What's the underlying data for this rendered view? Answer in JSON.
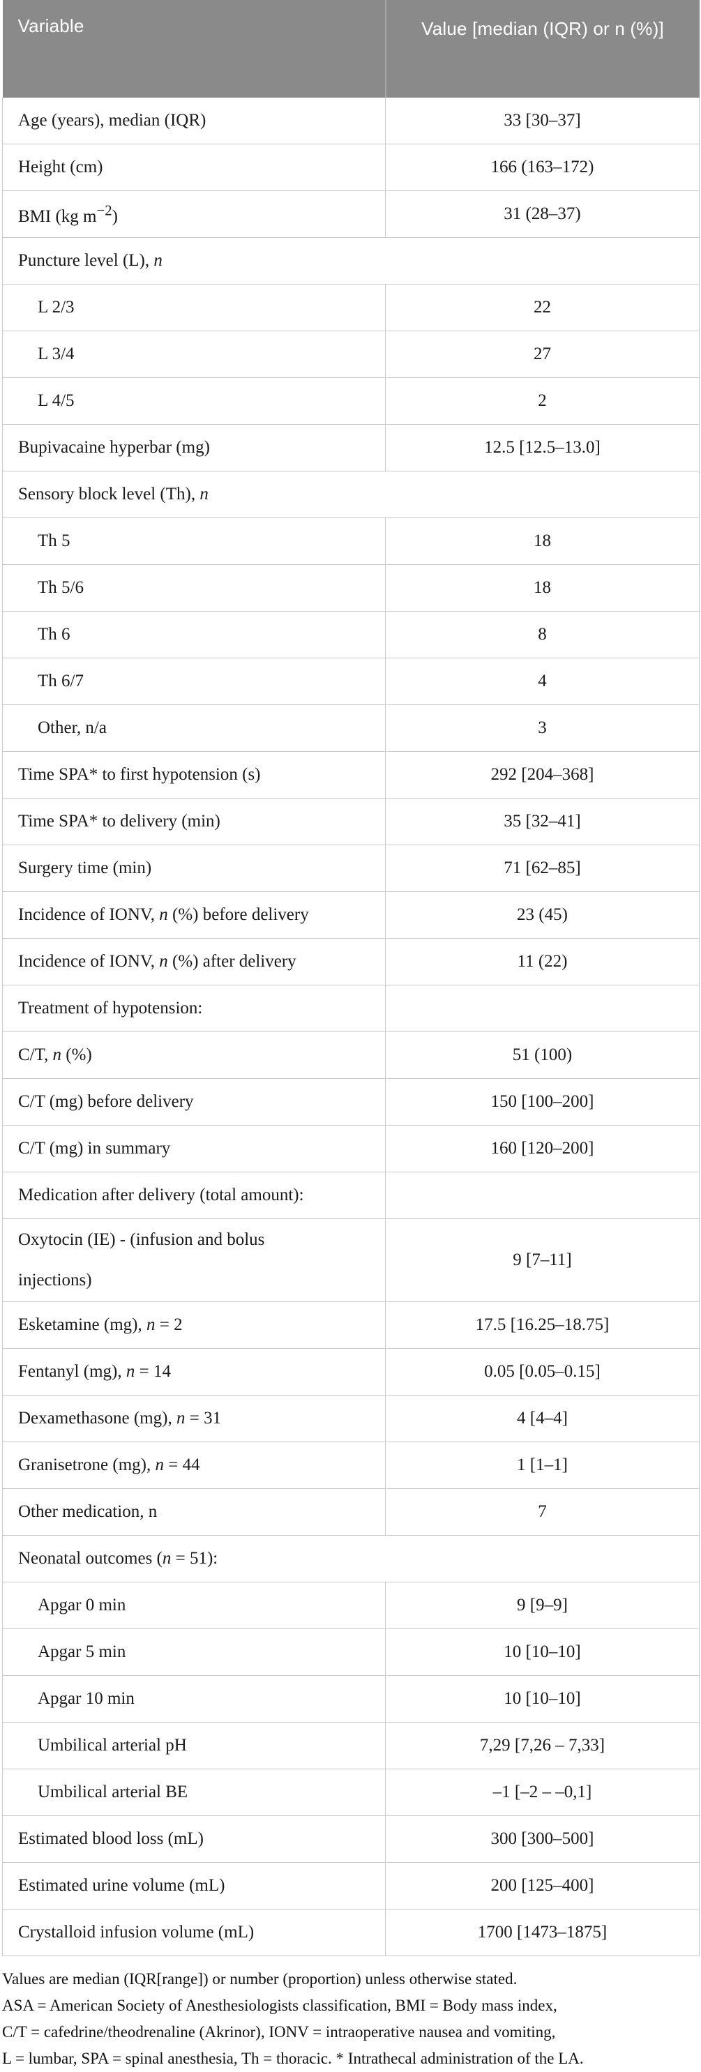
{
  "table": {
    "columns": {
      "variable": "Variable",
      "value": "Value [median (IQR) or n (%)]"
    },
    "header_bg_color": "#8a8a8a",
    "header_text_color": "#ffffff",
    "rows": [
      {
        "label": "Age (years), median (IQR)",
        "value": "33 [30–37]"
      },
      {
        "label": "Height (cm)",
        "value": "166 (163–172)"
      },
      {
        "label": "BMI (kg m<sup>−2</sup>)",
        "value": "31 (28–37)"
      },
      {
        "label": "Puncture level (L), <i>n</i>",
        "section": true
      },
      {
        "label": "L 2/3",
        "value": "22",
        "indent": true
      },
      {
        "label": "L 3/4",
        "value": "27",
        "indent": true
      },
      {
        "label": "L 4/5",
        "value": "2",
        "indent": true
      },
      {
        "label": "Bupivacaine hyperbar (mg)",
        "value": "12.5 [12.5–13.0]"
      },
      {
        "label": "Sensory block level (Th), <i>n</i>",
        "section": true
      },
      {
        "label": "Th 5",
        "value": "18",
        "indent": true
      },
      {
        "label": "Th 5/6",
        "value": "18",
        "indent": true
      },
      {
        "label": "Th 6",
        "value": "8",
        "indent": true
      },
      {
        "label": "Th 6/7",
        "value": "4",
        "indent": true
      },
      {
        "label": "Other, n/a",
        "value": "3",
        "indent": true
      },
      {
        "label": "Time SPA* to first hypotension (s)",
        "value": "292 [204–368]"
      },
      {
        "label": "Time SPA* to delivery (min)",
        "value": "35 [32–41]"
      },
      {
        "label": "Surgery time (min)",
        "value": "71 [62–85]"
      },
      {
        "label": "Incidence of IONV, <i>n</i> (%) before delivery",
        "value": "23 (45)"
      },
      {
        "label": "Incidence of IONV, <i>n</i> (%) after delivery",
        "value": "11 (22)"
      },
      {
        "label": "Treatment of hypotension:",
        "value": ""
      },
      {
        "label": "C/T, <i>n</i> (%)",
        "value": "51 (100)"
      },
      {
        "label": "C/T (mg) before delivery",
        "value": "150 [100–200]"
      },
      {
        "label": "C/T (mg) in summary",
        "value": "160 [120–200]"
      },
      {
        "label": "Medication after delivery (total amount):",
        "value": ""
      },
      {
        "label": "Oxytocin (IE) - (infusion and bolus<br>injections)",
        "value": "9 [7–11]",
        "tall": true
      },
      {
        "label": "Esketamine (mg), <i>n</i> = 2",
        "value": "17.5 [16.25–18.75]"
      },
      {
        "label": "Fentanyl (mg), <i>n</i> = 14",
        "value": "0.05 [0.05–0.15]"
      },
      {
        "label": "Dexamethasone (mg), <i>n</i> = 31",
        "value": "4 [4–4]"
      },
      {
        "label": "Granisetrone (mg), <i>n</i> = 44",
        "value": "1 [1–1]"
      },
      {
        "label": "Other medication, n",
        "value": "7"
      },
      {
        "label": "Neonatal outcomes (<i>n</i> = 51):",
        "section": true
      },
      {
        "label": "Apgar 0 min",
        "value": "9 [9–9]",
        "indent": true
      },
      {
        "label": "Apgar 5 min",
        "value": "10 [10–10]",
        "indent": true
      },
      {
        "label": "Apgar 10 min",
        "value": "10 [10–10]",
        "indent": true
      },
      {
        "label": "Umbilical arterial pH",
        "value": "7,29 [7,26 – 7,33]",
        "indent": true
      },
      {
        "label": "Umbilical arterial BE",
        "value": "–1 [–2 – –0,1]",
        "indent": true
      },
      {
        "label": "Estimated blood loss (mL)",
        "value": "300 [300–500]"
      },
      {
        "label": "Estimated urine volume (mL)",
        "value": "200 [125–400]"
      },
      {
        "label": "Crystalloid infusion volume (mL)",
        "value": "1700 [1473–1875]"
      }
    ]
  },
  "footnotes": [
    "Values are median (IQR[range]) or number (proportion) unless otherwise stated.",
    "ASA = American Society of Anesthesiologists classification, BMI = Body mass index,",
    "C/T = cafedrine/theodrenaline (Akrinor), IONV = intraoperative nausea and vomiting,",
    "L = lumbar, SPA = spinal anesthesia, Th = thoracic. * Intrathecal administration of the LA."
  ]
}
